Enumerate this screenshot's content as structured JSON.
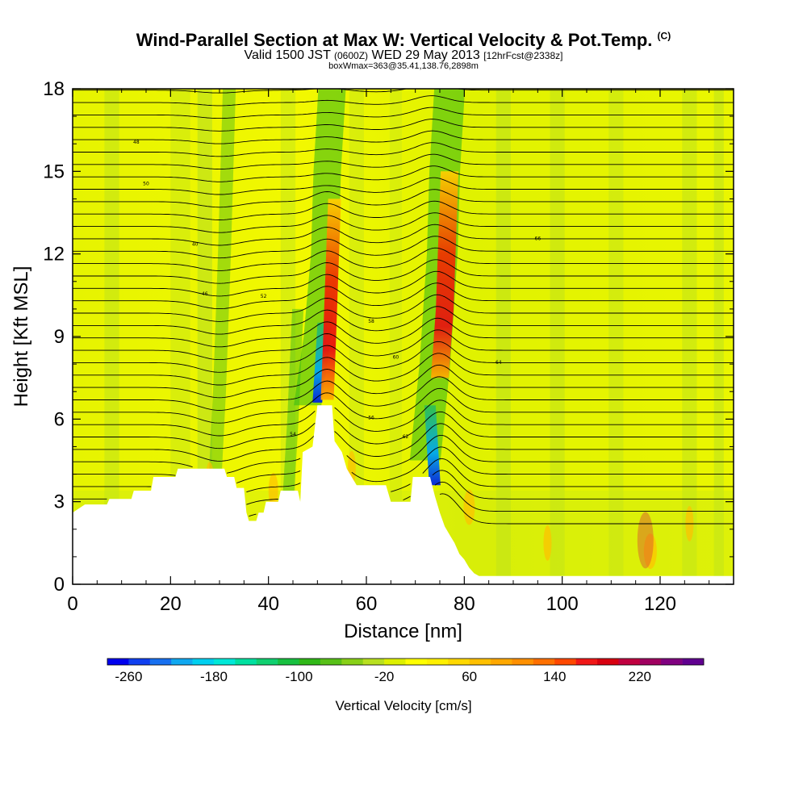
{
  "header": {
    "title": "Wind-Parallel Section at Max W: Vertical Velocity & Pot.Temp.",
    "title_mark": "(C)",
    "valid_prefix": "Valid 1500 JST",
    "valid_utc": "(0600Z)",
    "valid_date": "WED 29 May 2013",
    "forecast": "[12hrFcst@2338z]",
    "boxinfo": "boxWmax=363@35.41,138.76,2898m"
  },
  "chart_data": {
    "type": "heatmap",
    "xlabel": "Distance [nm]",
    "ylabel": "Height [Kft MSL]",
    "xlim": [
      0,
      135
    ],
    "ylim": [
      0,
      18
    ],
    "x_ticks": [
      "0",
      "20",
      "40",
      "60",
      "80",
      "100",
      "120"
    ],
    "y_ticks": [
      "0",
      "3",
      "6",
      "9",
      "12",
      "15",
      "18"
    ],
    "terrain_kft": [
      [
        0,
        2.6
      ],
      [
        2.5,
        2.9
      ],
      [
        7,
        2.9
      ],
      [
        7.5,
        3.1
      ],
      [
        12,
        3.1
      ],
      [
        12.5,
        3.4
      ],
      [
        16,
        3.4
      ],
      [
        16.5,
        3.9
      ],
      [
        21,
        3.9
      ],
      [
        21.5,
        4.2
      ],
      [
        31,
        4.2
      ],
      [
        31.5,
        3.9
      ],
      [
        33,
        3.9
      ],
      [
        33.5,
        3.5
      ],
      [
        35,
        3.5
      ],
      [
        35.5,
        2.6
      ],
      [
        36,
        2.3
      ],
      [
        37.5,
        2.3
      ],
      [
        38,
        2.6
      ],
      [
        39,
        2.6
      ],
      [
        39.5,
        3.0
      ],
      [
        42,
        3.0
      ],
      [
        42.5,
        3.4
      ],
      [
        46,
        3.4
      ],
      [
        46.5,
        3.0
      ],
      [
        47,
        4.8
      ],
      [
        49,
        5.0
      ],
      [
        50,
        6.5
      ],
      [
        53,
        6.5
      ],
      [
        53.5,
        5.2
      ],
      [
        55,
        4.8
      ],
      [
        56,
        4.2
      ],
      [
        57,
        3.9
      ],
      [
        58,
        3.6
      ],
      [
        64,
        3.6
      ],
      [
        65,
        3.0
      ],
      [
        69,
        3.0
      ],
      [
        69.5,
        3.9
      ],
      [
        73,
        3.9
      ],
      [
        74,
        3.2
      ],
      [
        75,
        2.6
      ],
      [
        76,
        2.1
      ],
      [
        77,
        1.8
      ],
      [
        78,
        1.5
      ],
      [
        79,
        1.1
      ],
      [
        80,
        0.9
      ],
      [
        81,
        0.6
      ],
      [
        82,
        0.4
      ],
      [
        83,
        0.3
      ],
      [
        135,
        0.3
      ]
    ],
    "isentrope_labels": [
      "40",
      "46",
      "48",
      "50",
      "52",
      "54",
      "56",
      "58",
      "60",
      "62",
      "64",
      "66"
    ],
    "colorbar": {
      "label": "Vertical Velocity [cm/s]",
      "range": [
        -280,
        280
      ],
      "step": 20,
      "tick_labels": [
        "-260",
        "-180",
        "-100",
        "-20",
        "60",
        "140",
        "220"
      ],
      "colors": [
        "#0000ee",
        "#1040f0",
        "#1870f0",
        "#10a8f0",
        "#00d0f0",
        "#00e8d8",
        "#00e0a0",
        "#10d070",
        "#18c040",
        "#30b818",
        "#58c018",
        "#88d018",
        "#b8e020",
        "#ddf000",
        "#ffff00",
        "#fff000",
        "#ffd800",
        "#ffc000",
        "#ffa800",
        "#ff9000",
        "#ff7000",
        "#ff4800",
        "#f01818",
        "#d80010",
        "#c00040",
        "#a00060",
        "#800080",
        "#600090"
      ]
    },
    "updraft_max_cms": 363
  }
}
